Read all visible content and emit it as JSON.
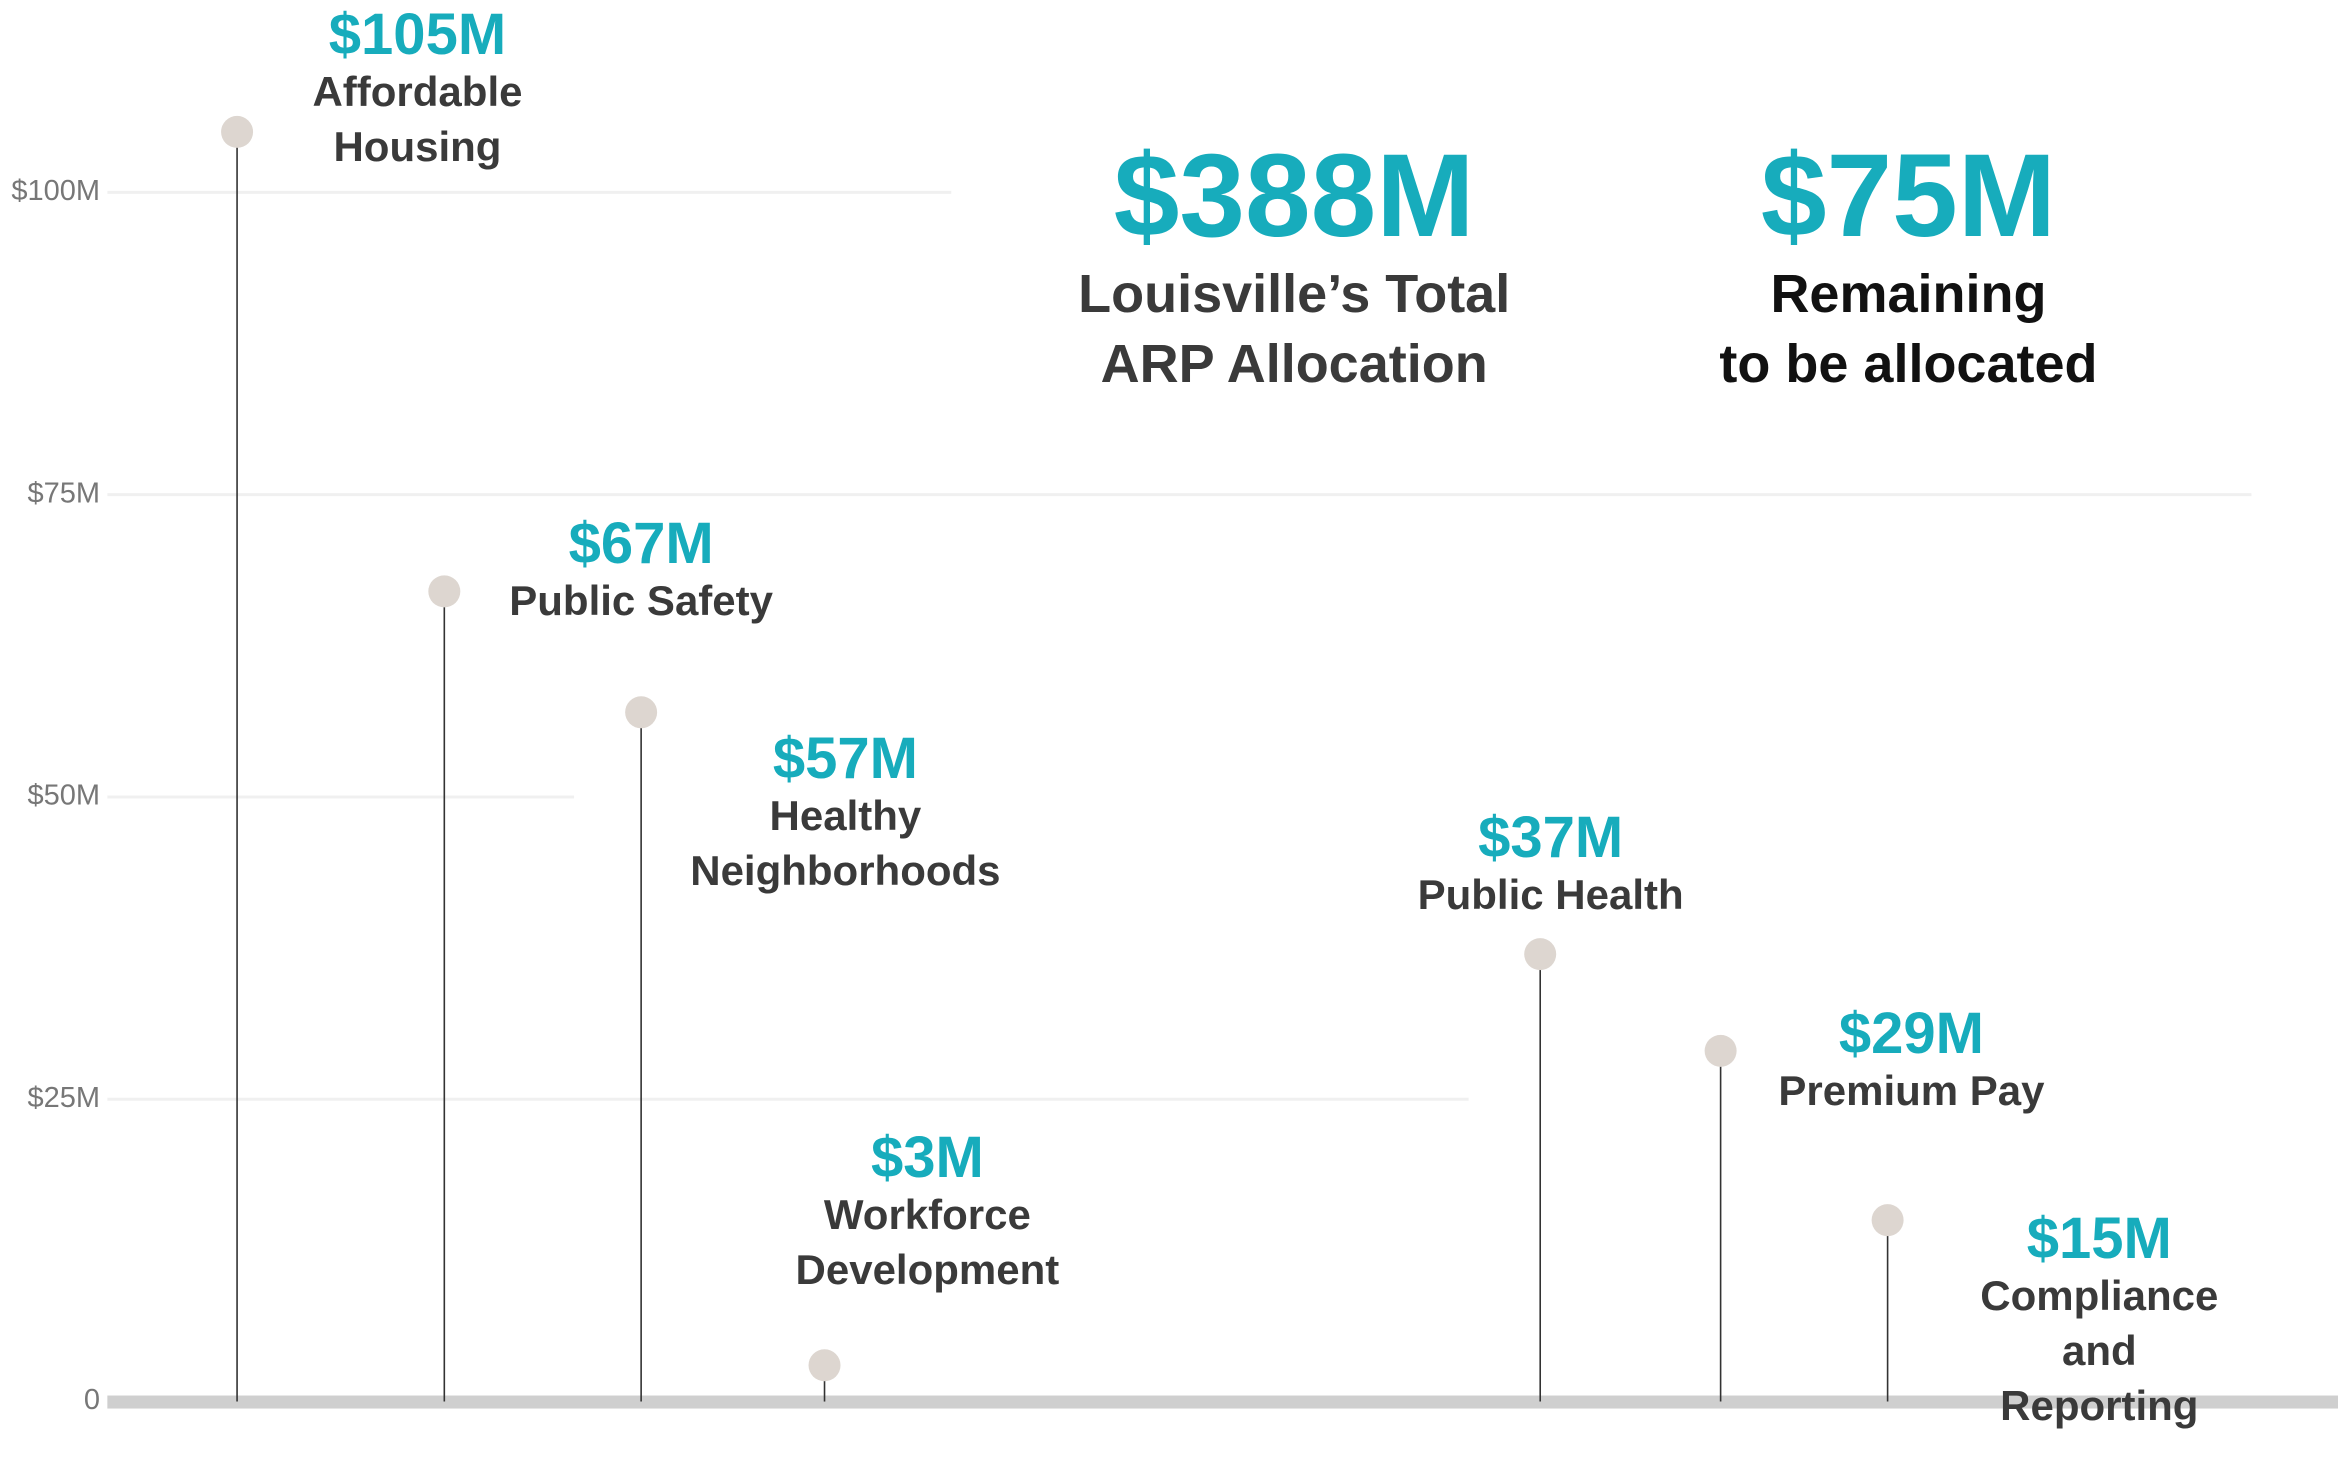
{
  "chart_data": {
    "type": "lollipop",
    "categories": [
      "Affordable\nHousing",
      "Public Safety",
      "Healthy\nNeighborhoods",
      "Workforce\nDevelopment",
      "Public Health",
      "Premium Pay",
      "Compliance and\nReporting"
    ],
    "values": [
      105,
      67,
      57,
      3,
      37,
      29,
      15
    ],
    "value_labels": [
      "$105M",
      "$67M",
      "$57M",
      "$3M",
      "$37M",
      "$29M",
      "$15M"
    ],
    "color": "#ddd6d0",
    "label_color": "#17acbc",
    "ylim": [
      0,
      115
    ],
    "yticks": [
      0,
      {
        "value": 25,
        "label": "$25M"
      },
      {
        "value": 50,
        "label": "$50M"
      },
      {
        "value": 75,
        "label": "$75M"
      },
      {
        "value": 100,
        "label": "$100M"
      }
    ],
    "grid": true,
    "annotations": [
      {
        "value": "$388M",
        "text": "Louisville’s Total\nARP Allocation"
      },
      {
        "value": "$75M",
        "text": "Remaining\nto be allocated"
      }
    ]
  }
}
